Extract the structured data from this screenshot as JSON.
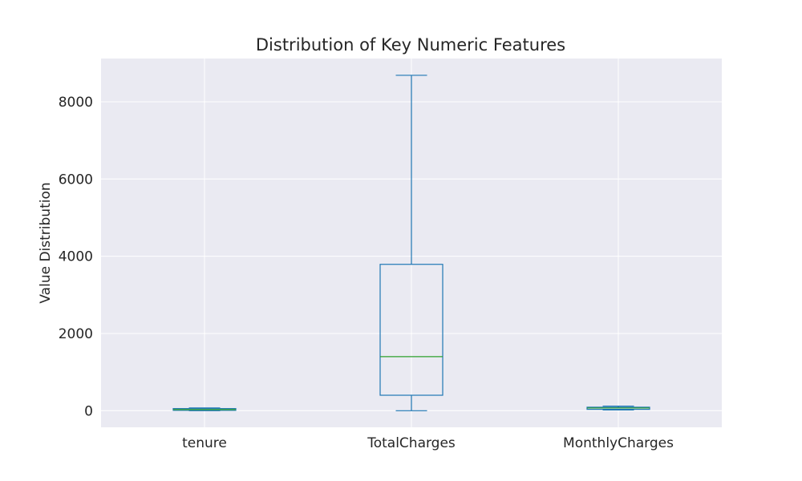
{
  "chart_data": {
    "type": "box",
    "title": "Distribution of Key Numeric Features",
    "xlabel": "",
    "ylabel": "Value Distribution",
    "categories": [
      "tenure",
      "TotalCharges",
      "MonthlyCharges"
    ],
    "boxes": [
      {
        "name": "tenure",
        "whisker_low": 0,
        "q1": 9,
        "median": 29,
        "q3": 55,
        "whisker_high": 72
      },
      {
        "name": "TotalCharges",
        "whisker_low": 0,
        "q1": 400,
        "median": 1400,
        "q3": 3790,
        "whisker_high": 8685
      },
      {
        "name": "MonthlyCharges",
        "whisker_low": 18,
        "q1": 35,
        "median": 70,
        "q3": 90,
        "whisker_high": 119
      }
    ],
    "ylim": [
      -430,
      9120
    ],
    "yticks": [
      0,
      2000,
      4000,
      6000,
      8000
    ],
    "grid": true,
    "colors": {
      "box": "#1f77b4",
      "median": "#2ca02c",
      "background": "#eaeaf2",
      "grid": "#ffffff"
    }
  }
}
